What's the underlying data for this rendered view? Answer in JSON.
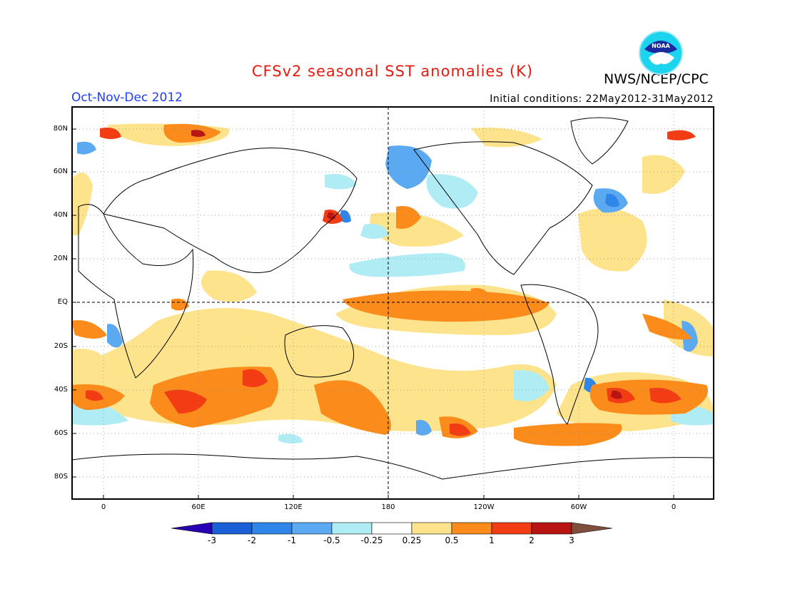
{
  "title": "CFSv2 seasonal SST anomalies (K)",
  "organization": "NWS/NCEP/CPC",
  "logo_text": "NOAA",
  "period": "Oct-Nov-Dec 2012",
  "initial_conditions": "Initial conditions: 22May2012-31May2012",
  "colors": {
    "title": "#e8190f",
    "period": "#1e3cff",
    "land_outline": "#000000"
  },
  "map": {
    "lat_labels": [
      "80N",
      "60N",
      "40N",
      "20N",
      "EQ",
      "20S",
      "40S",
      "60S",
      "80S"
    ],
    "lon_labels": [
      "0",
      "60E",
      "120E",
      "180",
      "120W",
      "60W",
      "0"
    ],
    "grid": "dotted",
    "reference_lines": [
      "Equator",
      "Date line (180)"
    ]
  },
  "colorbar": {
    "labels": [
      "-3",
      "-2",
      "-1",
      "-0.5",
      "-0.25",
      "0.25",
      "0.5",
      "1",
      "2",
      "3"
    ],
    "colors": [
      "#2a00b4",
      "#1a5fd6",
      "#2f86e8",
      "#5ba9f0",
      "#b0ecf4",
      "#ffffff",
      "#fde48c",
      "#fb8c1c",
      "#f23c14",
      "#b81414",
      "#7f4f3c"
    ]
  },
  "anomaly_patches": [
    {
      "region": "central-eastern equatorial Pacific",
      "level": "1"
    },
    {
      "region": "eastern equatorial Pacific",
      "level": "0.5"
    },
    {
      "region": "Southern Indian Ocean",
      "level": "1"
    },
    {
      "region": "South Atlantic",
      "level": "2"
    },
    {
      "region": "North Pacific off Japan",
      "level": "2"
    },
    {
      "region": "Bering Sea",
      "level": "-1"
    },
    {
      "region": "North Atlantic",
      "level": "-1"
    },
    {
      "region": "Barents Sea",
      "level": "1"
    },
    {
      "region": "South Pacific",
      "level": "2"
    },
    {
      "region": "North Pacific subtropics",
      "level": "-0.25"
    }
  ]
}
